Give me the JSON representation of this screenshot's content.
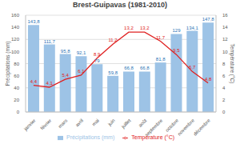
{
  "chart_data": {
    "type": "combo",
    "title": "Brest-Guipavas (1981-2010)",
    "categories": [
      "janvier",
      "février",
      "mars",
      "avril",
      "mai",
      "juin",
      "juillet",
      "août",
      "septembre",
      "octobre",
      "novembre",
      "décembre"
    ],
    "y_label": "Précipitations (mm)",
    "y2_label": "Température (°C)",
    "ylim": [
      0,
      160
    ],
    "yticks": [
      0,
      20,
      40,
      60,
      80,
      100,
      120,
      140,
      160
    ],
    "y2lim": [
      0,
      16
    ],
    "y2ticks": [
      0,
      2,
      4,
      6,
      8,
      10,
      12,
      14,
      16
    ],
    "grid": true,
    "legend": "bottom",
    "data_labels": true,
    "series": [
      {
        "name": "Précipitations (mm)",
        "type": "bar",
        "color": "#9dc3e6",
        "values": [
          143.8,
          111.7,
          95.8,
          92.1,
          79,
          59.8,
          66.8,
          66.8,
          81.8,
          129,
          134.1,
          147.8
        ],
        "value_labels": [
          "143,8",
          "111,7",
          "95,8",
          "92,1",
          "79",
          "59,8",
          "66,8",
          "66,8",
          "81,8",
          "129",
          "134,1",
          "147,8"
        ]
      },
      {
        "name": "Température (°C)",
        "type": "line",
        "axis": "y2",
        "color": "#e02020",
        "marker": "none",
        "values": [
          4.4,
          4.1,
          5.4,
          6.1,
          8.9,
          11.2,
          13.2,
          13.2,
          11.7,
          9.5,
          6.7,
          4.8
        ],
        "value_labels": [
          "4,4",
          "4,1",
          "5,4",
          "6,1",
          "8,9",
          "11,2",
          "13,2",
          "13,2",
          "11,7",
          "9,5",
          "6,7",
          "4,8"
        ]
      }
    ]
  }
}
